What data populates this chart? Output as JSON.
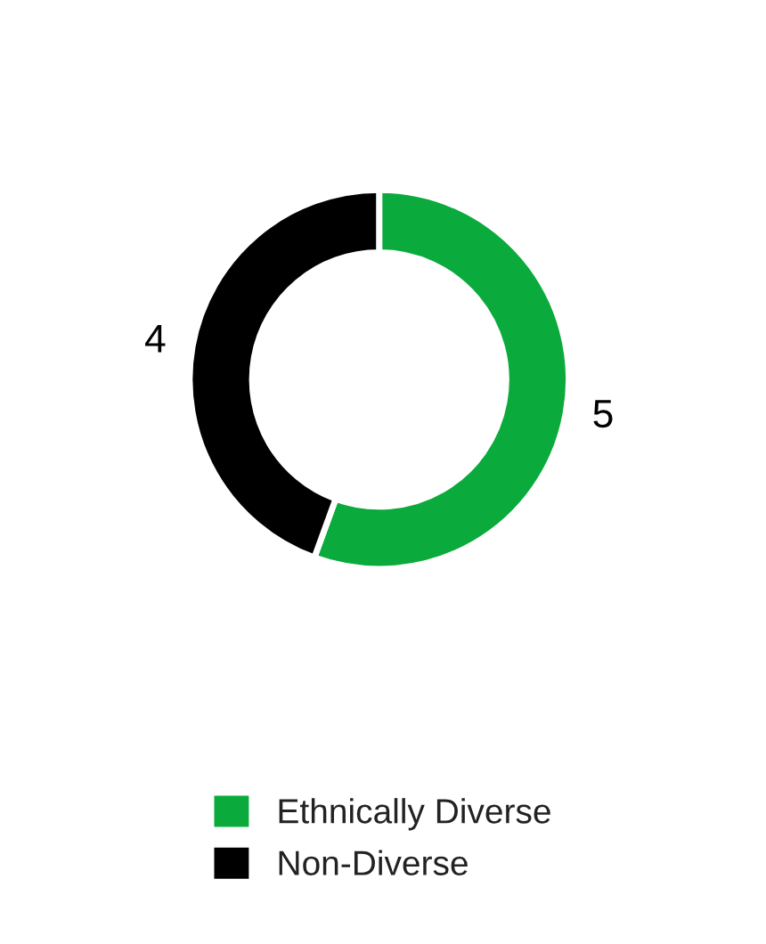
{
  "chart_data": {
    "type": "donut",
    "categories": [
      "Ethnically Diverse",
      "Non-Diverse"
    ],
    "values": [
      5,
      4
    ],
    "colors": [
      "#0aaa3c",
      "#000000"
    ],
    "data_labels": true,
    "legend": "bottom"
  }
}
